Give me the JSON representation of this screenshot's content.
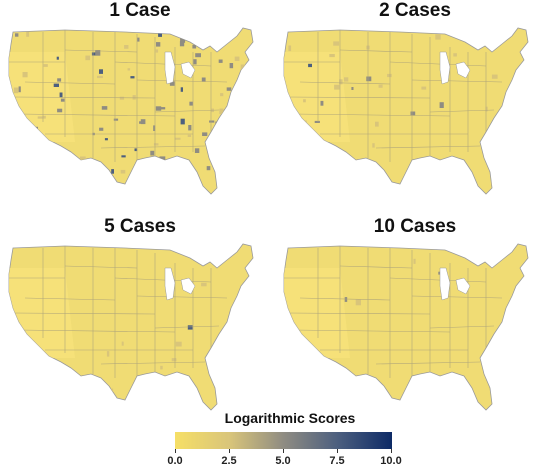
{
  "panels": [
    {
      "title": "1 Case"
    },
    {
      "title": "2 Cases"
    },
    {
      "title": "5 Cases"
    },
    {
      "title": "10 Cases"
    }
  ],
  "legend": {
    "title": "Logarithmic Scores",
    "ticks": [
      "0.0",
      "2.5",
      "5.0",
      "7.5",
      "10.0"
    ],
    "range": [
      0,
      10
    ],
    "colors": [
      "#f6df66",
      "#d9c57a",
      "#8f8c82",
      "#4c5f7f",
      "#0d2a66"
    ]
  }
}
